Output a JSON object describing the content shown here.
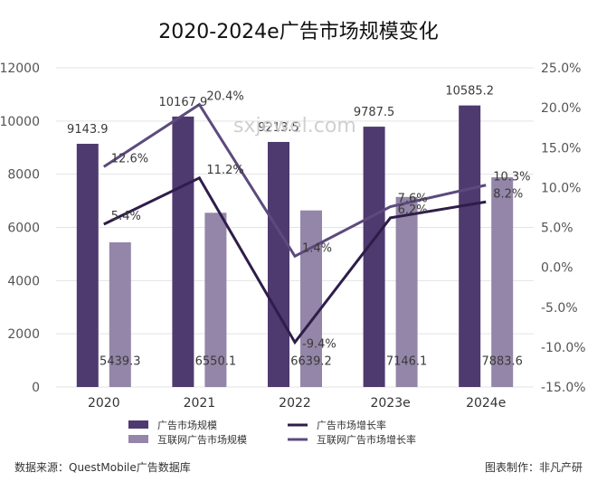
{
  "chart_data": {
    "type": "bar",
    "title": "2020-2024e广告市场规模变化",
    "categories": [
      "2020",
      "2021",
      "2022",
      "2023e",
      "2024e"
    ],
    "series": [
      {
        "name": "广告市场规模",
        "kind": "bar",
        "axis": "left",
        "values": [
          9143.9,
          10167.9,
          9213.5,
          9787.5,
          10585.2
        ],
        "color": "#4e3a6e"
      },
      {
        "name": "互联网广告市场规模",
        "kind": "bar",
        "axis": "left",
        "values": [
          5439.3,
          6550.1,
          6639.2,
          7146.1,
          7883.6
        ],
        "color": "#9486a8"
      },
      {
        "name": "广告市场增长率",
        "kind": "line",
        "axis": "right",
        "values": [
          5.4,
          11.2,
          -9.4,
          6.2,
          8.2
        ],
        "color": "#2e1d4a",
        "labels": [
          "5.4%",
          "11.2%",
          "-9.4%",
          "6.2%",
          "8.2%"
        ]
      },
      {
        "name": "互联网广告市场增长率",
        "kind": "line",
        "axis": "right",
        "values": [
          12.6,
          20.4,
          1.4,
          7.6,
          10.3
        ],
        "color": "#5d4a7d",
        "labels": [
          "12.6%",
          "20.4%",
          "1.4%",
          "7.6%",
          "10.3%"
        ]
      }
    ],
    "bar_labels": {
      "market": [
        "9143.9",
        "10167.9",
        "9213.5",
        "9787.5",
        "10585.2"
      ],
      "internet": [
        "5439.3",
        "6550.1",
        "6639.2",
        "7146.1",
        "7883.6"
      ]
    },
    "ylim_left": [
      0,
      12000
    ],
    "ylim_right": [
      -15,
      25
    ],
    "yticks_left": [
      "0",
      "2000",
      "4000",
      "6000",
      "8000",
      "10000",
      "12000"
    ],
    "yticks_left_values": [
      0,
      2000,
      4000,
      6000,
      8000,
      10000,
      12000
    ],
    "yticks_right": [
      "-15.0%",
      "-10.0%",
      "-5.0%",
      "0.0%",
      "5.0%",
      "10.0%",
      "15.0%",
      "20.0%",
      "25.0%"
    ],
    "yticks_right_values": [
      -15,
      -10,
      -5,
      0,
      5,
      10,
      15,
      20,
      25
    ],
    "grid": true,
    "legend_position": "bottom"
  },
  "watermark": "sxjewel.com",
  "footer": {
    "source": "数据来源：QuestMobile广告数据库",
    "credit": "图表制作：非凡产研"
  }
}
